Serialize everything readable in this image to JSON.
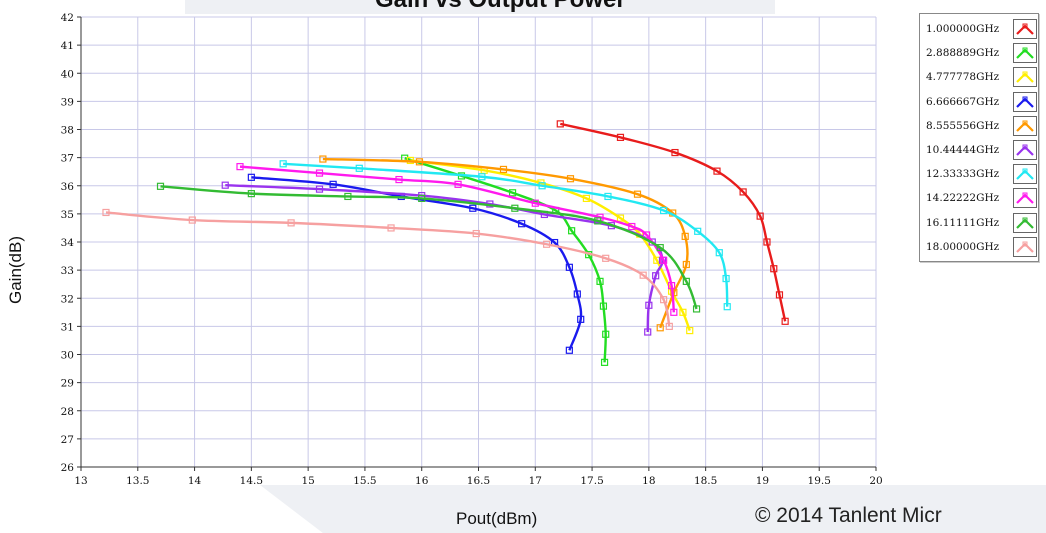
{
  "page": {
    "title": "Gain vs Output Power",
    "copyright": "© 2014 Tanlent Micr"
  },
  "chart_data": {
    "type": "line",
    "title": "Gain vs Output Power",
    "xlabel": "Pout(dBm)",
    "ylabel": "Gain(dB)",
    "xlim": [
      13,
      20
    ],
    "ylim": [
      26,
      42
    ],
    "x_ticks": [
      "13",
      "13.5",
      "14",
      "14.5",
      "15",
      "15.5",
      "16",
      "16.5",
      "17",
      "17.5",
      "18",
      "18.5",
      "19",
      "19.5",
      "20"
    ],
    "y_ticks": [
      "26",
      "27",
      "28",
      "29",
      "30",
      "31",
      "32",
      "33",
      "34",
      "35",
      "36",
      "37",
      "38",
      "39",
      "40",
      "41",
      "42"
    ],
    "grid": true,
    "legend_position": "right",
    "series": [
      {
        "name": "1.000000GHz",
        "color": "#e81c1c",
        "points": [
          [
            17.22,
            38.2
          ],
          [
            17.75,
            37.72
          ],
          [
            18.23,
            37.18
          ],
          [
            18.6,
            36.52
          ],
          [
            18.83,
            35.78
          ],
          [
            18.98,
            34.92
          ],
          [
            19.04,
            34.0
          ],
          [
            19.1,
            33.05
          ],
          [
            19.15,
            32.12
          ],
          [
            19.2,
            31.18
          ]
        ]
      },
      {
        "name": "2.888889GHz",
        "color": "#22dd22",
        "points": [
          [
            15.85,
            36.98
          ],
          [
            16.35,
            36.35
          ],
          [
            16.8,
            35.75
          ],
          [
            17.18,
            35.12
          ],
          [
            17.32,
            34.4
          ],
          [
            17.47,
            33.55
          ],
          [
            17.57,
            32.6
          ],
          [
            17.6,
            31.72
          ],
          [
            17.62,
            30.72
          ],
          [
            17.61,
            29.72
          ]
        ]
      },
      {
        "name": "4.777778GHz",
        "color": "#ffee00",
        "points": [
          [
            15.9,
            36.9
          ],
          [
            16.55,
            36.55
          ],
          [
            17.05,
            36.1
          ],
          [
            17.45,
            35.55
          ],
          [
            17.75,
            34.85
          ],
          [
            17.92,
            34.28
          ],
          [
            18.07,
            33.35
          ],
          [
            18.2,
            32.25
          ],
          [
            18.3,
            31.5
          ],
          [
            18.36,
            30.85
          ]
        ]
      },
      {
        "name": "6.666667GHz",
        "color": "#1a1aee",
        "points": [
          [
            14.5,
            36.3
          ],
          [
            15.22,
            36.05
          ],
          [
            15.82,
            35.62
          ],
          [
            16.45,
            35.2
          ],
          [
            16.88,
            34.65
          ],
          [
            17.17,
            33.98
          ],
          [
            17.3,
            33.1
          ],
          [
            17.37,
            32.15
          ],
          [
            17.4,
            31.25
          ],
          [
            17.3,
            30.15
          ]
        ]
      },
      {
        "name": "8.555556GHz",
        "color": "#ff9900",
        "points": [
          [
            15.13,
            36.95
          ],
          [
            15.98,
            36.85
          ],
          [
            16.72,
            36.58
          ],
          [
            17.31,
            36.25
          ],
          [
            17.9,
            35.7
          ],
          [
            18.21,
            35.03
          ],
          [
            18.32,
            34.2
          ],
          [
            18.33,
            33.2
          ],
          [
            18.22,
            32.2
          ],
          [
            18.1,
            30.95
          ]
        ]
      },
      {
        "name": "10.44444GHz",
        "color": "#9933ee",
        "points": [
          [
            14.27,
            36.02
          ],
          [
            15.1,
            35.88
          ],
          [
            16.0,
            35.65
          ],
          [
            16.6,
            35.35
          ],
          [
            17.08,
            34.98
          ],
          [
            17.67,
            34.58
          ],
          [
            18.03,
            34.0
          ],
          [
            18.12,
            33.35
          ],
          [
            18.06,
            32.8
          ],
          [
            18.0,
            31.75
          ],
          [
            17.99,
            30.8
          ]
        ]
      },
      {
        "name": "12.33333GHz",
        "color": "#22e8f2",
        "points": [
          [
            14.78,
            36.78
          ],
          [
            15.45,
            36.62
          ],
          [
            16.53,
            36.32
          ],
          [
            17.06,
            36.0
          ],
          [
            17.64,
            35.62
          ],
          [
            18.13,
            35.12
          ],
          [
            18.43,
            34.38
          ],
          [
            18.62,
            33.62
          ],
          [
            18.68,
            32.7
          ],
          [
            18.69,
            31.7
          ]
        ]
      },
      {
        "name": "14.22222GHz",
        "color": "#ff1aee",
        "points": [
          [
            14.4,
            36.68
          ],
          [
            15.1,
            36.45
          ],
          [
            15.8,
            36.22
          ],
          [
            16.32,
            36.05
          ],
          [
            17.0,
            35.38
          ],
          [
            17.57,
            34.88
          ],
          [
            17.85,
            34.55
          ],
          [
            17.98,
            34.25
          ],
          [
            18.13,
            33.35
          ],
          [
            18.2,
            32.45
          ],
          [
            18.22,
            31.5
          ]
        ]
      },
      {
        "name": "16.11111GHz",
        "color": "#33bb33",
        "points": [
          [
            13.7,
            35.98
          ],
          [
            14.5,
            35.72
          ],
          [
            15.35,
            35.62
          ],
          [
            16.0,
            35.55
          ],
          [
            16.82,
            35.2
          ],
          [
            17.55,
            34.75
          ],
          [
            18.1,
            33.8
          ],
          [
            18.33,
            32.6
          ],
          [
            18.42,
            31.62
          ]
        ]
      },
      {
        "name": "18.00000GHz",
        "color": "#f6a0a0",
        "points": [
          [
            13.22,
            35.05
          ],
          [
            13.98,
            34.78
          ],
          [
            14.85,
            34.68
          ],
          [
            15.73,
            34.5
          ],
          [
            16.48,
            34.3
          ],
          [
            17.1,
            33.92
          ],
          [
            17.62,
            33.42
          ],
          [
            17.95,
            32.82
          ],
          [
            18.13,
            31.95
          ],
          [
            18.18,
            31.0
          ]
        ]
      }
    ]
  }
}
